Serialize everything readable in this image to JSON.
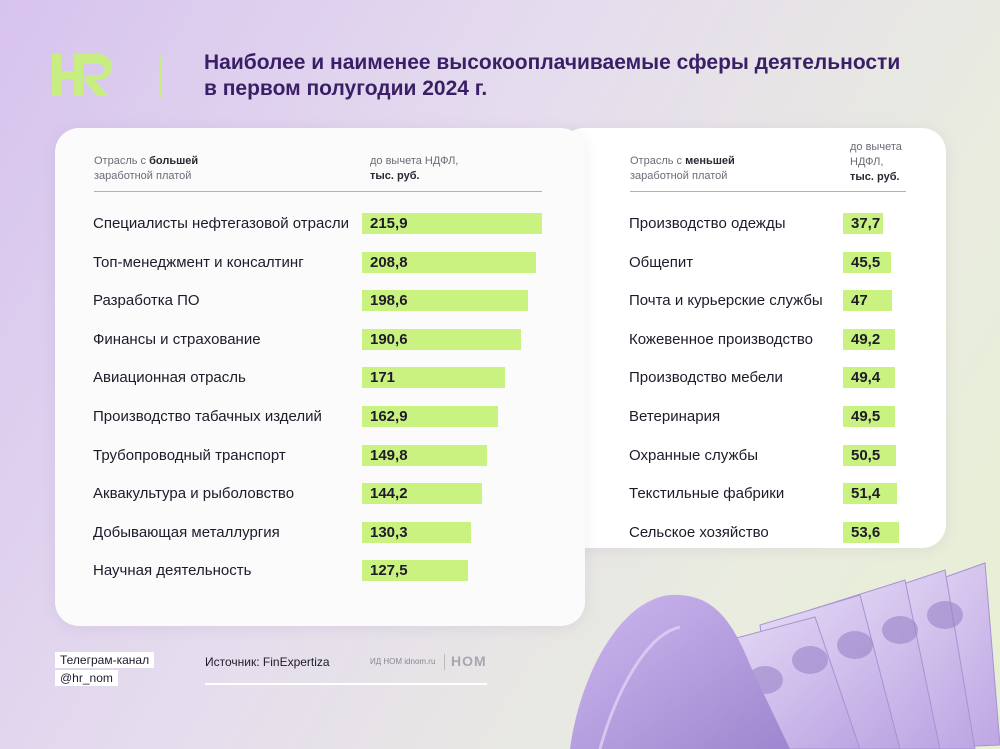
{
  "header": {
    "logo_text": "HR",
    "title": "Наиболее и наименее высокооплачиваемые сферы деятельности в первом полугодии 2024 г."
  },
  "left_table": {
    "col1_pre": "Отрасль с ",
    "col1_bold": "большей",
    "col1_post": "заработной платой",
    "col2_line1": "до вычета НДФЛ,",
    "col2_line2": "тыс. руб."
  },
  "right_table": {
    "col1_pre": "Отрасль с ",
    "col1_bold": "меньшей",
    "col1_post": "заработной платой",
    "col2_line1": "до вычета",
    "col2_line2": "НДФЛ,",
    "col2_line3": "тыс. руб."
  },
  "chart_data": [
    {
      "type": "bar",
      "orientation": "horizontal",
      "categories": [
        "Специалисты нефтегазовой отрасли",
        "Топ-менеджмент и консалтинг",
        "Разработка ПО",
        "Финансы и страхование",
        "Авиационная отрасль",
        "Производство табачных изделий",
        "Трубопроводный транспорт",
        "Аквакультура и рыболовство",
        "Добывающая металлургия",
        "Научная деятельность"
      ],
      "values": [
        215.9,
        208.8,
        198.6,
        190.6,
        171,
        162.9,
        149.8,
        144.2,
        130.3,
        127.5
      ],
      "value_labels": [
        "215,9",
        "208,8",
        "198,6",
        "190,6",
        "171",
        "162,9",
        "149,8",
        "144,2",
        "130,3",
        "127,5"
      ],
      "bar_color": "#c9f280"
    },
    {
      "type": "bar",
      "orientation": "horizontal",
      "categories": [
        "Производство одежды",
        "Общепит",
        "Почта и курьерские службы",
        "Кожевенное производство",
        "Производство мебели",
        "Ветеринария",
        "Охранные службы",
        "Текстильные фабрики",
        "Сельское хозяйство"
      ],
      "values": [
        37.7,
        45.5,
        47,
        49.2,
        49.4,
        49.5,
        50.5,
        51.4,
        53.6
      ],
      "value_labels": [
        "37,7",
        "45,5",
        "47",
        "49,2",
        "49,4",
        "49,5",
        "50,5",
        "51,4",
        "53,6"
      ],
      "bar_color": "#c9f280"
    }
  ],
  "footer": {
    "tag_line1": "Телеграм-канал",
    "tag_line2": "@hr_nom",
    "source": "Источник: FinExpertiza",
    "publisher": "ИД НОМ idnom.ru",
    "publisher_logo": "НОМ"
  },
  "colors": {
    "accent_green": "#c9f280",
    "title_purple": "#3a1f66",
    "money_lilac": "#c9b3ea"
  },
  "icons": [
    "hr-logo-icon",
    "money-wallet-image"
  ]
}
